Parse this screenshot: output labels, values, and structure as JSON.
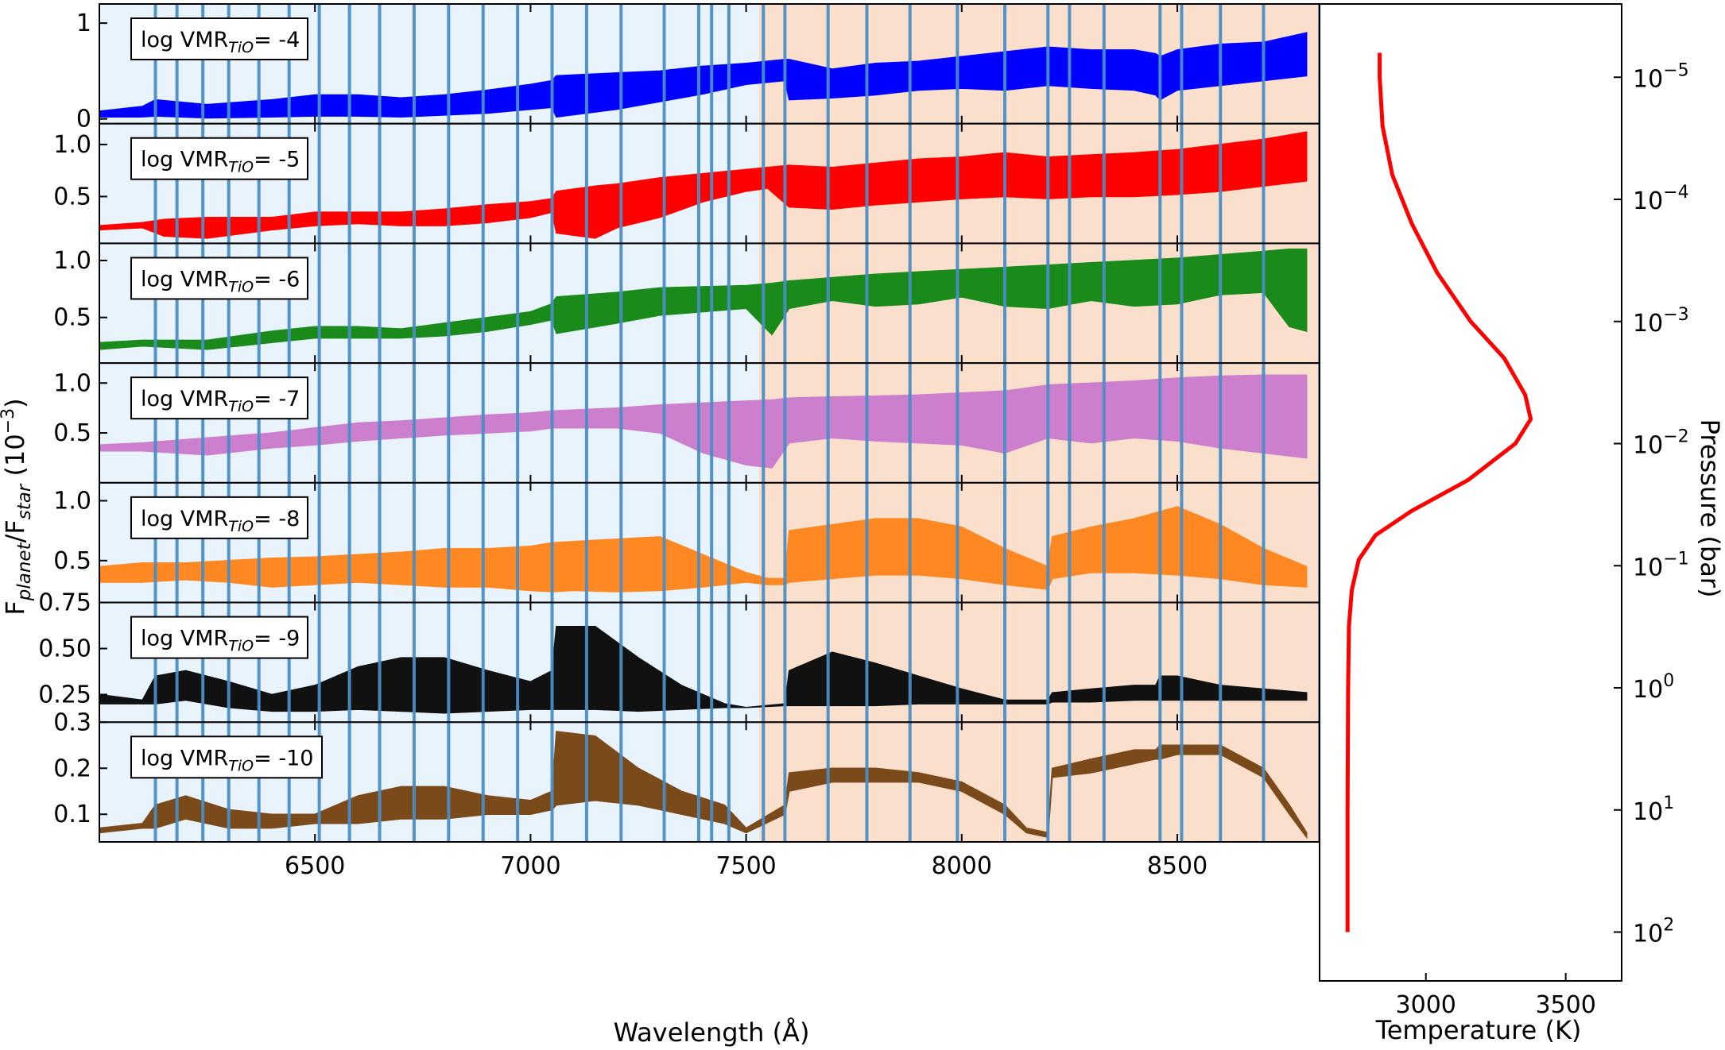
{
  "chart_data": [
    {
      "type": "line",
      "title": "",
      "xlabel": "Wavelength (Å)",
      "ylabel": "F_planet/F_star (10^-3)",
      "ylabel_parts": {
        "f1": "F",
        "sub1": "planet",
        "slash": "/F",
        "sub2": "star",
        "unit": " (10",
        "exp": "−3",
        "close": ")"
      },
      "xlim": [
        6000,
        8830
      ],
      "xticks": [
        6500,
        7000,
        7500,
        8000,
        8500
      ],
      "xtick_labels": [
        "6500",
        "7000",
        "7500",
        "8000",
        "8500"
      ],
      "shaded_regions": [
        {
          "range": [
            6000,
            7530
          ],
          "color": "#e8f3fc"
        },
        {
          "range": [
            7530,
            8830
          ],
          "color": "#fae0cc"
        }
      ],
      "bin_edges": [
        6130,
        6180,
        6240,
        6300,
        6370,
        6440,
        6510,
        6580,
        6650,
        6730,
        6810,
        6890,
        6970,
        7050,
        7130,
        7210,
        7310,
        7390,
        7420,
        7460,
        7540,
        7590,
        7690,
        7780,
        7880,
        7990,
        8100,
        8200,
        8250,
        8330,
        8460,
        8510,
        8600,
        8700,
        8830
      ],
      "bin_line_color": "#4a8ec6",
      "grid": false,
      "series": [
        {
          "name": "log VMR_TiO = -4",
          "label_main": "log VMR",
          "label_sub": "TiO",
          "label_val": "= -4",
          "color": "#0000ff",
          "ylim": [
            -0.05,
            1.2
          ],
          "yticks": [
            0,
            1
          ],
          "ytick_labels": [
            "0",
            "1"
          ],
          "x": [
            6000,
            6100,
            6130,
            6250,
            6400,
            6500,
            6600,
            6700,
            6800,
            6900,
            7000,
            7050,
            7060,
            7200,
            7300,
            7400,
            7500,
            7590,
            7600,
            7700,
            7800,
            7900,
            8000,
            8100,
            8200,
            8300,
            8400,
            8450,
            8460,
            8500,
            8600,
            8700,
            8800
          ],
          "lower": [
            0.02,
            0.02,
            0.03,
            0.01,
            0.02,
            0.03,
            0.03,
            0.02,
            0.04,
            0.06,
            0.1,
            0.12,
            0.02,
            0.1,
            0.18,
            0.26,
            0.36,
            0.4,
            0.2,
            0.22,
            0.25,
            0.3,
            0.32,
            0.3,
            0.35,
            0.32,
            0.3,
            0.25,
            0.2,
            0.3,
            0.35,
            0.4,
            0.45
          ],
          "upper": [
            0.08,
            0.13,
            0.2,
            0.15,
            0.2,
            0.25,
            0.25,
            0.22,
            0.25,
            0.3,
            0.36,
            0.4,
            0.45,
            0.48,
            0.5,
            0.55,
            0.58,
            0.62,
            0.62,
            0.52,
            0.58,
            0.6,
            0.65,
            0.7,
            0.75,
            0.72,
            0.72,
            0.68,
            0.65,
            0.72,
            0.78,
            0.8,
            0.9
          ]
        },
        {
          "name": "log VMR_TiO = -5",
          "label_main": "log VMR",
          "label_sub": "TiO",
          "label_val": "= -5",
          "color": "#ff0000",
          "ylim": [
            0.05,
            1.2
          ],
          "yticks": [
            0.5,
            1.0
          ],
          "ytick_labels": [
            "0.5",
            "1.0"
          ],
          "x": [
            6000,
            6100,
            6150,
            6250,
            6400,
            6500,
            6600,
            6700,
            6800,
            6900,
            7000,
            7050,
            7060,
            7150,
            7200,
            7300,
            7400,
            7500,
            7550,
            7600,
            7700,
            7800,
            7900,
            8000,
            8100,
            8200,
            8300,
            8400,
            8500,
            8600,
            8700,
            8800
          ],
          "lower": [
            0.18,
            0.2,
            0.12,
            0.1,
            0.18,
            0.22,
            0.24,
            0.22,
            0.22,
            0.25,
            0.3,
            0.35,
            0.15,
            0.1,
            0.2,
            0.3,
            0.45,
            0.55,
            0.58,
            0.4,
            0.38,
            0.42,
            0.45,
            0.48,
            0.5,
            0.48,
            0.5,
            0.5,
            0.52,
            0.55,
            0.6,
            0.65
          ],
          "upper": [
            0.22,
            0.25,
            0.28,
            0.3,
            0.3,
            0.35,
            0.35,
            0.35,
            0.38,
            0.42,
            0.45,
            0.48,
            0.55,
            0.6,
            0.62,
            0.68,
            0.72,
            0.76,
            0.78,
            0.8,
            0.78,
            0.82,
            0.86,
            0.88,
            0.92,
            0.88,
            0.9,
            0.92,
            0.95,
            1.0,
            1.05,
            1.12
          ]
        },
        {
          "name": "log VMR_TiO = -6",
          "label_main": "log VMR",
          "label_sub": "TiO",
          "label_val": "= -6",
          "color": "#1a8a1a",
          "ylim": [
            0.1,
            1.15
          ],
          "yticks": [
            0.5,
            1.0
          ],
          "ytick_labels": [
            "0.5",
            "1.0"
          ],
          "x": [
            6000,
            6100,
            6250,
            6400,
            6500,
            6600,
            6700,
            6800,
            6900,
            7000,
            7050,
            7060,
            7200,
            7300,
            7500,
            7560,
            7600,
            7700,
            7800,
            7900,
            8000,
            8100,
            8200,
            8300,
            8400,
            8500,
            8600,
            8700,
            8760,
            8800
          ],
          "lower": [
            0.22,
            0.25,
            0.22,
            0.28,
            0.32,
            0.32,
            0.32,
            0.34,
            0.38,
            0.44,
            0.48,
            0.36,
            0.45,
            0.52,
            0.58,
            0.35,
            0.58,
            0.65,
            0.6,
            0.62,
            0.68,
            0.6,
            0.58,
            0.65,
            0.6,
            0.62,
            0.7,
            0.72,
            0.42,
            0.38
          ],
          "upper": [
            0.28,
            0.3,
            0.3,
            0.38,
            0.42,
            0.42,
            0.4,
            0.45,
            0.5,
            0.55,
            0.62,
            0.68,
            0.72,
            0.76,
            0.78,
            0.8,
            0.82,
            0.85,
            0.88,
            0.9,
            0.92,
            0.94,
            0.96,
            0.98,
            1.0,
            1.02,
            1.05,
            1.08,
            1.1,
            1.1
          ]
        },
        {
          "name": "log VMR_TiO = -7",
          "label_main": "log VMR",
          "label_sub": "TiO",
          "label_val": "= -7",
          "color": "#cc7fcc",
          "ylim": [
            0.0,
            1.2
          ],
          "yticks": [
            0.5,
            1.0
          ],
          "ytick_labels": [
            "0.5",
            "1.0"
          ],
          "x": [
            6000,
            6100,
            6250,
            6400,
            6500,
            6600,
            6700,
            6800,
            6900,
            7000,
            7050,
            7200,
            7300,
            7400,
            7500,
            7560,
            7600,
            7700,
            7800,
            7900,
            8000,
            8100,
            8200,
            8300,
            8400,
            8500,
            8600,
            8700,
            8800
          ],
          "lower": [
            0.32,
            0.32,
            0.28,
            0.35,
            0.38,
            0.42,
            0.45,
            0.48,
            0.5,
            0.52,
            0.55,
            0.55,
            0.5,
            0.3,
            0.18,
            0.15,
            0.4,
            0.45,
            0.42,
            0.4,
            0.38,
            0.3,
            0.45,
            0.4,
            0.45,
            0.42,
            0.35,
            0.3,
            0.25
          ],
          "upper": [
            0.38,
            0.4,
            0.45,
            0.5,
            0.55,
            0.6,
            0.62,
            0.65,
            0.68,
            0.7,
            0.72,
            0.75,
            0.78,
            0.8,
            0.82,
            0.83,
            0.85,
            0.86,
            0.87,
            0.88,
            0.9,
            0.92,
            0.98,
            1.0,
            1.02,
            1.05,
            1.07,
            1.08,
            1.08
          ]
        },
        {
          "name": "log VMR_TiO = -8",
          "label_main": "log VMR",
          "label_sub": "TiO",
          "label_val": "= -8",
          "color": "#ff8822",
          "ylim": [
            0.15,
            1.15
          ],
          "yticks": [
            0.5,
            1.0
          ],
          "ytick_labels": [
            "0.5",
            "1.0"
          ],
          "x": [
            6000,
            6100,
            6200,
            6300,
            6400,
            6500,
            6600,
            6700,
            6800,
            6900,
            7000,
            7050,
            7100,
            7200,
            7300,
            7400,
            7500,
            7550,
            7590,
            7600,
            7700,
            7800,
            7900,
            8000,
            8100,
            8200,
            8210,
            8300,
            8400,
            8500,
            8600,
            8700,
            8800
          ],
          "lower": [
            0.32,
            0.32,
            0.34,
            0.32,
            0.28,
            0.3,
            0.32,
            0.3,
            0.28,
            0.28,
            0.25,
            0.24,
            0.25,
            0.24,
            0.25,
            0.28,
            0.32,
            0.3,
            0.3,
            0.32,
            0.35,
            0.38,
            0.38,
            0.35,
            0.3,
            0.26,
            0.35,
            0.4,
            0.4,
            0.38,
            0.35,
            0.3,
            0.28
          ],
          "upper": [
            0.45,
            0.48,
            0.48,
            0.5,
            0.52,
            0.53,
            0.55,
            0.57,
            0.6,
            0.6,
            0.62,
            0.65,
            0.66,
            0.68,
            0.7,
            0.55,
            0.4,
            0.35,
            0.35,
            0.75,
            0.8,
            0.85,
            0.85,
            0.78,
            0.6,
            0.45,
            0.7,
            0.78,
            0.85,
            0.95,
            0.8,
            0.6,
            0.45
          ]
        },
        {
          "name": "log VMR_TiO = -9",
          "label_main": "log VMR",
          "label_sub": "TiO",
          "label_val": "= -9",
          "color": "#111111",
          "ylim": [
            0.1,
            0.75
          ],
          "yticks": [
            0.25,
            0.5,
            0.75
          ],
          "ytick_labels": [
            "0.25",
            "0.50",
            "0.75"
          ],
          "x": [
            6000,
            6100,
            6130,
            6200,
            6300,
            6400,
            6500,
            6600,
            6700,
            6800,
            6900,
            7000,
            7050,
            7060,
            7150,
            7250,
            7350,
            7450,
            7500,
            7590,
            7600,
            7700,
            7800,
            7900,
            8000,
            8100,
            8200,
            8210,
            8300,
            8400,
            8450,
            8460,
            8500,
            8600,
            8700,
            8800
          ],
          "lower": [
            0.2,
            0.2,
            0.2,
            0.22,
            0.18,
            0.16,
            0.16,
            0.17,
            0.16,
            0.15,
            0.16,
            0.17,
            0.17,
            0.17,
            0.17,
            0.16,
            0.17,
            0.18,
            0.18,
            0.19,
            0.19,
            0.19,
            0.19,
            0.2,
            0.2,
            0.2,
            0.2,
            0.21,
            0.21,
            0.22,
            0.22,
            0.22,
            0.22,
            0.22,
            0.22,
            0.22
          ],
          "upper": [
            0.25,
            0.22,
            0.35,
            0.38,
            0.32,
            0.25,
            0.3,
            0.4,
            0.45,
            0.45,
            0.38,
            0.32,
            0.38,
            0.62,
            0.62,
            0.45,
            0.3,
            0.2,
            0.18,
            0.2,
            0.38,
            0.48,
            0.42,
            0.35,
            0.28,
            0.22,
            0.22,
            0.26,
            0.28,
            0.3,
            0.3,
            0.35,
            0.35,
            0.3,
            0.28,
            0.26
          ]
        },
        {
          "name": "log VMR_TiO = -10",
          "label_main": "log VMR",
          "label_sub": "TiO",
          "label_val": "= -10",
          "color": "#7a4a1a",
          "ylim": [
            0.04,
            0.3
          ],
          "yticks": [
            0.1,
            0.2,
            0.3
          ],
          "ytick_labels": [
            "0.1",
            "0.2",
            "0.3"
          ],
          "x": [
            6000,
            6100,
            6130,
            6200,
            6300,
            6400,
            6500,
            6600,
            6700,
            6800,
            6900,
            7000,
            7050,
            7060,
            7150,
            7250,
            7350,
            7450,
            7500,
            7590,
            7600,
            7700,
            7800,
            7900,
            8000,
            8100,
            8150,
            8200,
            8210,
            8300,
            8400,
            8450,
            8460,
            8500,
            8600,
            8700,
            8760,
            8800
          ],
          "lower": [
            0.06,
            0.07,
            0.07,
            0.09,
            0.07,
            0.07,
            0.08,
            0.08,
            0.09,
            0.09,
            0.1,
            0.1,
            0.11,
            0.12,
            0.13,
            0.12,
            0.1,
            0.08,
            0.06,
            0.1,
            0.15,
            0.17,
            0.17,
            0.17,
            0.15,
            0.1,
            0.06,
            0.05,
            0.18,
            0.19,
            0.21,
            0.22,
            0.22,
            0.23,
            0.23,
            0.18,
            0.1,
            0.05
          ],
          "upper": [
            0.07,
            0.08,
            0.12,
            0.14,
            0.11,
            0.1,
            0.1,
            0.14,
            0.16,
            0.16,
            0.14,
            0.13,
            0.15,
            0.28,
            0.27,
            0.2,
            0.15,
            0.12,
            0.07,
            0.12,
            0.19,
            0.2,
            0.2,
            0.19,
            0.17,
            0.12,
            0.07,
            0.06,
            0.2,
            0.22,
            0.24,
            0.24,
            0.25,
            0.25,
            0.25,
            0.2,
            0.12,
            0.06
          ]
        }
      ]
    },
    {
      "type": "line",
      "title": "",
      "xlabel": "Temperature (K)",
      "ylabel": "Pressure (bar)",
      "xlim": [
        2620,
        3700
      ],
      "xticks": [
        3000,
        3500
      ],
      "xtick_labels": [
        "3000",
        "3500"
      ],
      "yscale": "log",
      "ylim_log10": [
        -5.6,
        2.4
      ],
      "yticks_log10": [
        -5,
        -4,
        -3,
        -2,
        -1,
        0,
        1,
        2
      ],
      "ytick_labels": [
        {
          "base": "10",
          "exp": "−5"
        },
        {
          "base": "10",
          "exp": "−4"
        },
        {
          "base": "10",
          "exp": "−3"
        },
        {
          "base": "10",
          "exp": "−2"
        },
        {
          "base": "10",
          "exp": "−1"
        },
        {
          "base": "10",
          "exp": "0"
        },
        {
          "base": "10",
          "exp": "1"
        },
        {
          "base": "10",
          "exp": "2"
        }
      ],
      "series": [
        {
          "color": "#ff0000",
          "T": [
            2720,
            2720,
            2722,
            2725,
            2735,
            2760,
            2820,
            2950,
            3150,
            3320,
            3375,
            3355,
            3280,
            3160,
            3040,
            2950,
            2880,
            2845,
            2835,
            2835
          ],
          "log10_P": [
            2.0,
            1.0,
            0.0,
            -0.5,
            -0.8,
            -1.05,
            -1.25,
            -1.45,
            -1.7,
            -2.0,
            -2.2,
            -2.4,
            -2.7,
            -3.0,
            -3.4,
            -3.8,
            -4.2,
            -4.6,
            -5.0,
            -5.2
          ]
        }
      ]
    }
  ]
}
